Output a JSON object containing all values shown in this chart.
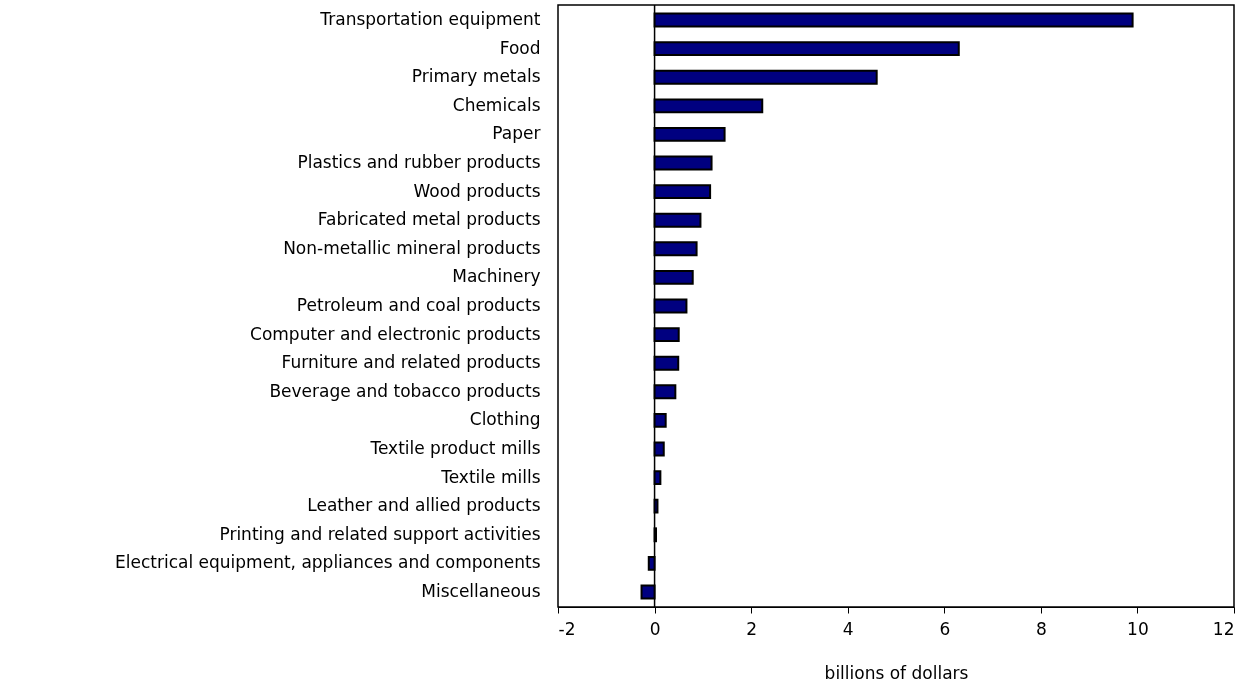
{
  "chart_data": {
    "type": "bar",
    "orientation": "horizontal",
    "xlabel": "billions of dollars",
    "categories": [
      "Transportation equipment",
      "Food",
      "Primary metals",
      "Chemicals",
      "Paper",
      "Plastics and rubber products",
      "Wood products",
      "Fabricated metal products",
      "Non-metallic mineral products",
      "Machinery",
      "Petroleum and coal products",
      "Computer and electronic products",
      "Furniture and related products",
      "Beverage and tobacco products",
      "Clothing",
      "Textile product mills",
      "Textile mills",
      "Leather and allied products",
      "Printing and related support activities ",
      "Electrical equipment, appliances and components",
      "Miscellaneous"
    ],
    "values": [
      9.9,
      6.3,
      4.6,
      2.23,
      1.45,
      1.18,
      1.15,
      0.95,
      0.87,
      0.79,
      0.66,
      0.5,
      0.49,
      0.43,
      0.23,
      0.19,
      0.12,
      0.06,
      0.03,
      -0.12,
      -0.27
    ],
    "color": "#000080",
    "xlim": [
      -2,
      12
    ],
    "xticks": [
      -2,
      0,
      2,
      4,
      6,
      8,
      10,
      12
    ],
    "ref_lines": [
      {
        "axis": "x",
        "value": 0,
        "color": "#000000"
      }
    ],
    "grid": false
  }
}
